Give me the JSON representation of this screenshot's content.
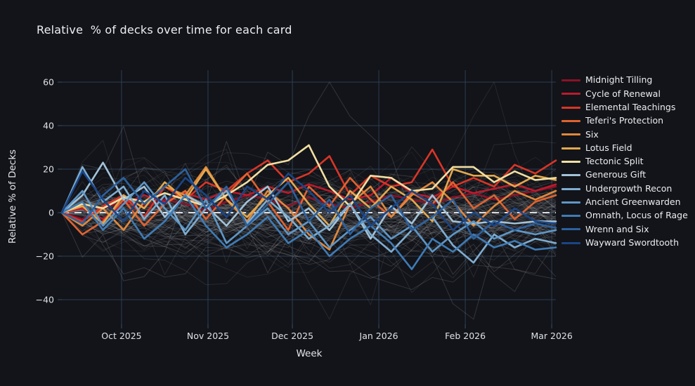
{
  "title": "Relative  % of decks over time for each card",
  "x_axis": {
    "label": "Week",
    "tick_labels": [
      "Oct 2025",
      "Nov 2025",
      "Dec 2025",
      "Jan 2026",
      "Feb 2026",
      "Mar 2026"
    ],
    "tick_positions_week": [
      2.9,
      7.1,
      11.2,
      15.4,
      19.6,
      23.8
    ]
  },
  "y_axis": {
    "label": "Relative % of Decks",
    "ticks": [
      -40,
      -20,
      0,
      20,
      40,
      60
    ],
    "range": [
      -51,
      65
    ]
  },
  "chart_data": {
    "type": "line",
    "title": "Relative  % of decks over time for each card",
    "xlabel": "Week",
    "ylabel": "Relative % of Decks",
    "ylim": [
      -51,
      65
    ],
    "grid": true,
    "legend_position": "right",
    "x_unit": "week index (weekly samples, mid-Sep 2025 to early Mar 2026)",
    "x": [
      0,
      1,
      2,
      3,
      4,
      5,
      6,
      7,
      8,
      9,
      10,
      11,
      12,
      13,
      14,
      15,
      16,
      17,
      18,
      19,
      20,
      21,
      22,
      23,
      24
    ],
    "series": [
      {
        "name": "Midnight Tilling",
        "color": "#8c1127",
        "values": [
          0,
          -3,
          2,
          5,
          3,
          6,
          4,
          1,
          5,
          8,
          6,
          3,
          7,
          4,
          2,
          5,
          8,
          6,
          4,
          7,
          9,
          6,
          8,
          10,
          12
        ]
      },
      {
        "name": "Cycle of Renewal",
        "color": "#bb1b2c",
        "values": [
          0,
          2,
          -3,
          4,
          8,
          5,
          9,
          6,
          10,
          8,
          12,
          9,
          13,
          10,
          6,
          8,
          16,
          9,
          7,
          12,
          9,
          11,
          13,
          10,
          13
        ]
      },
      {
        "name": "Elemental Teachings",
        "color": "#d93527",
        "values": [
          0,
          -4,
          3,
          8,
          -2,
          12,
          6,
          14,
          10,
          18,
          24,
          14,
          18,
          26,
          8,
          17,
          12,
          14,
          29,
          12,
          16,
          12,
          22,
          18,
          24
        ]
      },
      {
        "name": "Teferi's Protection",
        "color": "#e2622f",
        "values": [
          0,
          -10,
          -4,
          6,
          -6,
          4,
          10,
          -3,
          8,
          18,
          5,
          -8,
          12,
          3,
          16,
          6,
          -2,
          9,
          4,
          14,
          2,
          8,
          -3,
          5,
          8
        ]
      },
      {
        "name": "Six",
        "color": "#e1883c",
        "values": [
          0,
          -6,
          2,
          -8,
          5,
          12,
          8,
          21,
          6,
          -4,
          10,
          2,
          -10,
          -17,
          4,
          12,
          -2,
          8,
          14,
          5,
          -6,
          3,
          10,
          6,
          10
        ]
      },
      {
        "name": "Lotus Field",
        "color": "#e3a94e",
        "values": [
          0,
          3,
          -5,
          8,
          2,
          14,
          6,
          20,
          6,
          -2,
          8,
          16,
          4,
          -6,
          10,
          2,
          12,
          6,
          -4,
          20,
          17,
          17,
          12,
          17,
          15
        ]
      },
      {
        "name": "Tectonic Split",
        "color": "#f2dfa2",
        "values": [
          0,
          4,
          2,
          7,
          5,
          9,
          6,
          3,
          8,
          14,
          22,
          24,
          31,
          12,
          3,
          17,
          16,
          10,
          11,
          21,
          21,
          14,
          19,
          15,
          16
        ]
      },
      {
        "name": "Generous Gift",
        "color": "#a3c3d9",
        "values": [
          0,
          8,
          23,
          6,
          12,
          -2,
          8,
          3,
          -6,
          5,
          12,
          -4,
          2,
          -8,
          4,
          -12,
          3,
          -5,
          8,
          -4,
          -5,
          -4,
          -5,
          -4,
          -4
        ]
      },
      {
        "name": "Undergrowth Recon",
        "color": "#7eadd1",
        "values": [
          0,
          21,
          5,
          12,
          -3,
          8,
          -10,
          2,
          10,
          -5,
          6,
          -2,
          -12,
          -6,
          4,
          -10,
          -18,
          -8,
          -2,
          -15,
          -23,
          -10,
          -16,
          -12,
          -14
        ]
      },
      {
        "name": "Ancient Greenwarden",
        "color": "#5f97c7",
        "values": [
          0,
          10,
          -6,
          4,
          14,
          2,
          -8,
          6,
          -14,
          -6,
          2,
          -10,
          -4,
          -16,
          -8,
          -2,
          -12,
          -6,
          -18,
          -10,
          -4,
          -12,
          -8,
          -10,
          -8
        ]
      },
      {
        "name": "Omnath, Locus of Rage",
        "color": "#3f7cb6",
        "values": [
          0,
          5,
          -8,
          2,
          -12,
          -4,
          8,
          -6,
          -16,
          -10,
          -2,
          -14,
          -8,
          -20,
          -12,
          -6,
          -14,
          -26,
          -12,
          -18,
          -10,
          -16,
          -13,
          -17,
          -16
        ]
      },
      {
        "name": "Wrenn and Six",
        "color": "#2c619f",
        "values": [
          0,
          -5,
          8,
          16,
          4,
          12,
          20,
          2,
          12,
          -6,
          4,
          14,
          -4,
          6,
          -10,
          2,
          8,
          -8,
          -2,
          6,
          -12,
          -4,
          -8,
          -5,
          -7
        ]
      },
      {
        "name": "Wayward Swordtooth",
        "color": "#1a4586",
        "values": [
          0,
          19,
          6,
          -4,
          10,
          4,
          16,
          8,
          -2,
          12,
          6,
          18,
          10,
          0,
          8,
          -6,
          2,
          10,
          4,
          -8,
          0,
          -6,
          2,
          -4,
          -5
        ]
      }
    ],
    "zero_line": {
      "value": 0,
      "style": "dashed",
      "color": "#d9dde2"
    },
    "background_traces": {
      "note": "dense cloud of unlabeled gray context lines (other cards), all starting at 0; individual values not legible",
      "count": 110,
      "seed": 11,
      "step": 7,
      "mean_reversion": 0.85,
      "wild_count": 9,
      "wild_scale": 2.6,
      "color": "#c4c6c9",
      "opacity_min": 0.05,
      "opacity_max": 0.2
    },
    "colors": {
      "background": "#121419",
      "grid": "#2e3e52",
      "text": "#e4e7ec"
    }
  }
}
